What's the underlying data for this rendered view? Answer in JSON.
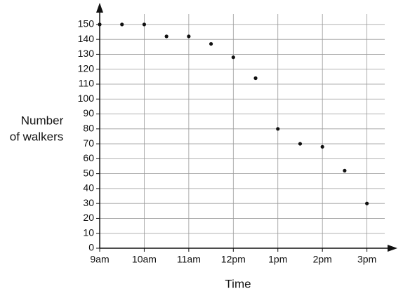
{
  "chart_data": {
    "type": "scatter",
    "xlabel": "Time",
    "ylabel": [
      "Number",
      "of walkers"
    ],
    "x": [
      9,
      9.5,
      10,
      10.5,
      11,
      11.5,
      12,
      12.5,
      13,
      13.5,
      14,
      14.5,
      15
    ],
    "values": [
      150,
      150,
      150,
      142,
      142,
      137,
      128,
      114,
      80,
      70,
      68,
      52,
      30
    ],
    "color": "#111111",
    "xlim": [
      9,
      15.4
    ],
    "xticks": [
      {
        "value": 9,
        "label": "9am"
      },
      {
        "value": 10,
        "label": "10am"
      },
      {
        "value": 11,
        "label": "11am"
      },
      {
        "value": 12,
        "label": "12pm"
      },
      {
        "value": 13,
        "label": "1pm"
      },
      {
        "value": 14,
        "label": "2pm"
      },
      {
        "value": 15,
        "label": "3pm"
      }
    ],
    "ylim": [
      0,
      157
    ],
    "yticks": [
      0,
      10,
      20,
      30,
      40,
      50,
      60,
      70,
      80,
      90,
      100,
      110,
      120,
      130,
      140,
      150
    ],
    "grid": true
  }
}
